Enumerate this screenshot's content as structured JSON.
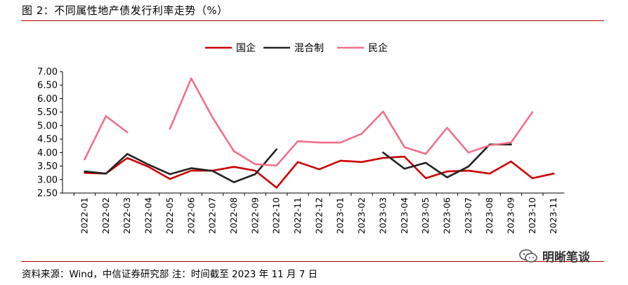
{
  "figure": {
    "title": "图 2：不同属性地产债发行利率走势（%）",
    "source_note": "资料来源：Wind，中信证券研究部 注：时间截至 2023 年 11 月 7 日",
    "watermark_text": "明晰笔谈"
  },
  "chart_data": {
    "type": "line",
    "title": "",
    "xlabel": "",
    "ylabel": "",
    "ylim": [
      2.5,
      7.0
    ],
    "yticks": [
      "7.00",
      "6.50",
      "6.00",
      "5.50",
      "5.00",
      "4.50",
      "4.00",
      "3.50",
      "3.00",
      "2.50"
    ],
    "grid": false,
    "legend_position": "top-center",
    "categories": [
      "2022-01",
      "2022-02",
      "2022-03",
      "2022-04",
      "2022-05",
      "2022-06",
      "2022-07",
      "2022-08",
      "2022-09",
      "2022-10",
      "2022-11",
      "2022-12",
      "2023-01",
      "2023-02",
      "2023-03",
      "2023-04",
      "2023-05",
      "2023-06",
      "2023-07",
      "2023-08",
      "2023-09",
      "2023-10",
      "2023-11"
    ],
    "series": [
      {
        "name": "国企",
        "color": "#cc0000",
        "values": [
          3.25,
          3.22,
          3.8,
          3.47,
          3.02,
          3.33,
          3.33,
          3.47,
          3.33,
          2.7,
          3.65,
          3.38,
          3.7,
          3.65,
          3.8,
          3.85,
          3.05,
          3.3,
          3.33,
          3.22,
          3.67,
          3.05,
          3.22
        ]
      },
      {
        "name": "混合制",
        "color": "#222222",
        "values": [
          3.3,
          3.22,
          3.95,
          3.55,
          3.2,
          3.42,
          3.32,
          2.9,
          3.2,
          4.12,
          null,
          null,
          null,
          null,
          4.0,
          3.4,
          3.62,
          3.08,
          3.48,
          4.3,
          4.3,
          null,
          null
        ]
      },
      {
        "name": "民企",
        "color": "#f07088",
        "values": [
          3.75,
          5.35,
          4.75,
          null,
          4.88,
          6.75,
          5.3,
          4.05,
          3.57,
          3.52,
          4.42,
          4.37,
          4.37,
          4.7,
          5.52,
          4.2,
          3.95,
          4.92,
          4.0,
          4.27,
          4.37,
          5.5,
          null
        ]
      }
    ]
  }
}
